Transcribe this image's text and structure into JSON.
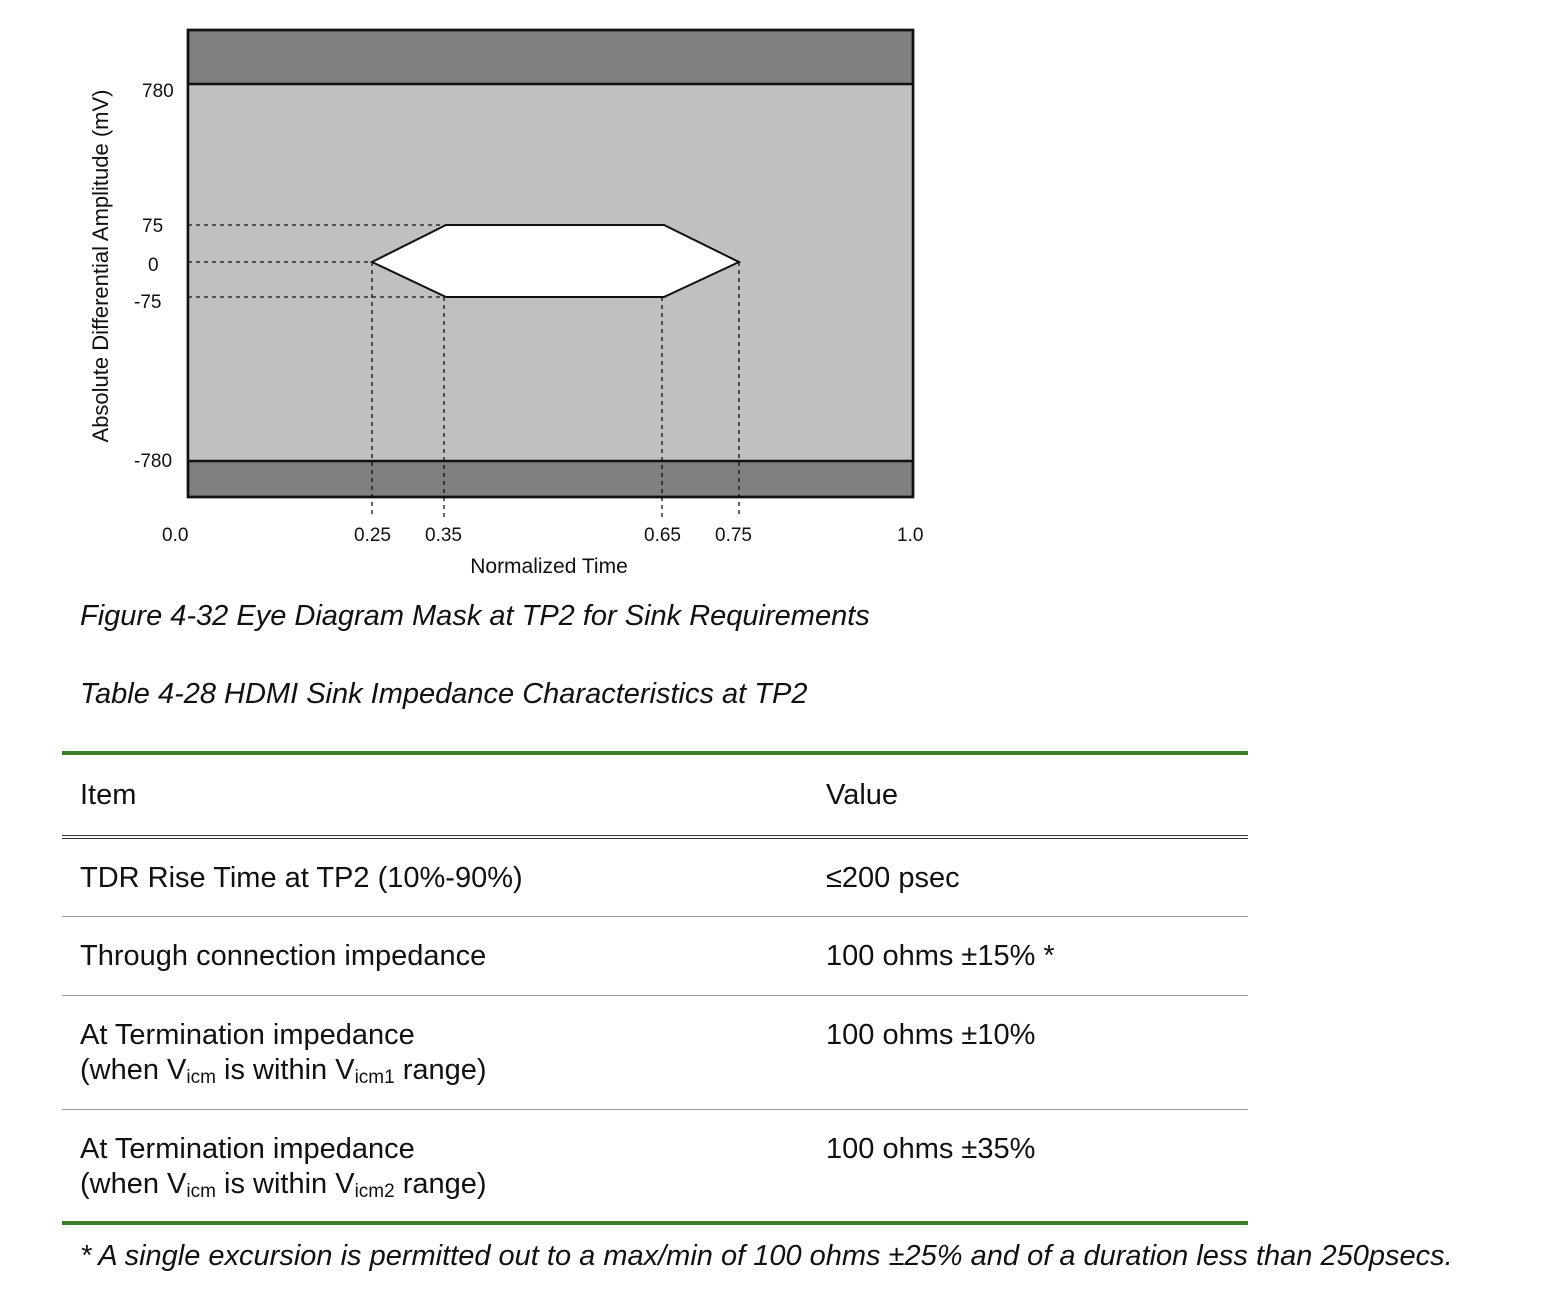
{
  "figure": {
    "y_axis_label": "Absolute Differential Amplitude (mV)",
    "x_axis_label": "Normalized Time",
    "y_ticks": [
      "780",
      "75",
      "0",
      "-75",
      "-780"
    ],
    "x_ticks": [
      "0.0",
      "0.25",
      "0.35",
      "0.65",
      "0.75",
      "1.0"
    ],
    "caption": "Figure 4-32 Eye Diagram Mask at TP2 for Sink Requirements",
    "colors": {
      "outer_band": "#808080",
      "mask_region": "#c0c0c0",
      "eye": "#ffffff"
    }
  },
  "table": {
    "caption": "Table 4-28 HDMI Sink Impedance Characteristics at TP2",
    "header": {
      "item": "Item",
      "value": "Value"
    },
    "rows": [
      {
        "item": "TDR Rise Time at TP2 (10%-90%)",
        "value": "≤200 psec"
      },
      {
        "item": "Through connection impedance",
        "value": "100 ohms ±15% *"
      },
      {
        "item_line1": "At Termination impedance",
        "item_line2_pre": "(when V",
        "sub1": "icm",
        "item_line2_mid": " is within V",
        "sub2": "icm1",
        "item_line2_post": " range)",
        "value": "100 ohms ±10%"
      },
      {
        "item_line1": "At Termination impedance",
        "item_line2_pre": "(when V",
        "sub1": "icm",
        "item_line2_mid": " is within V",
        "sub2": "icm2",
        "item_line2_post": " range)",
        "value": "100 ohms ±35%"
      }
    ],
    "footnote": "* A single excursion is permitted out to a max/min of 100 ohms ±25% and of a duration less than 250psecs.",
    "colors": {
      "rule_green": "#3c7d27"
    }
  }
}
